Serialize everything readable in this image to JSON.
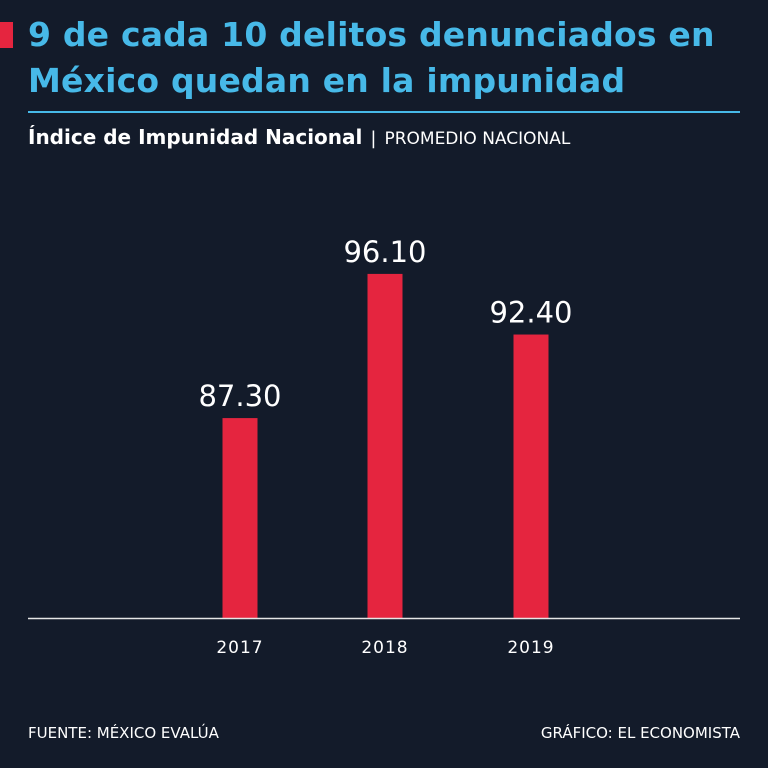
{
  "header": {
    "title": "9 de cada 10 delitos denunciados en México quedan en la impunidad",
    "subtitle_main": "Índice de Impunidad Nacional",
    "subtitle_separator": "|",
    "subtitle_aux": "PROMEDIO NACIONAL"
  },
  "colors": {
    "background": "#131b2a",
    "title": "#47b9e8",
    "bar": "#e5253f",
    "text": "#ffffff",
    "axis": "#e6e6e6"
  },
  "chart_data": {
    "type": "bar",
    "title": "Índice de Impunidad Nacional",
    "categories": [
      "2017",
      "2018",
      "2019"
    ],
    "values": [
      87.3,
      96.1,
      92.4
    ],
    "value_labels": [
      "87.30",
      "96.10",
      "92.40"
    ],
    "xlabel": "",
    "ylabel": "",
    "y_axis_visible": false,
    "grid": false,
    "legend": "none",
    "ylim": [
      75.1,
      100
    ]
  },
  "footer": {
    "source": "FUENTE: MÉXICO EVALÚA",
    "credit": "GRÁFICO: EL ECONOMISTA"
  }
}
